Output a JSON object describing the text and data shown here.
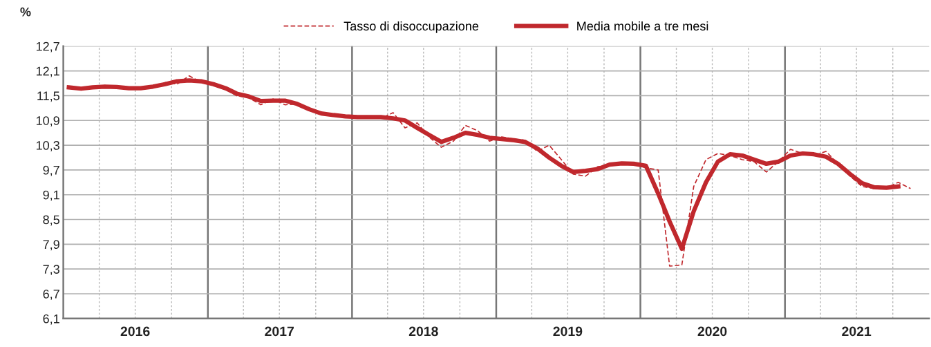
{
  "chart_data": {
    "type": "line",
    "ylabel": "%",
    "x": [
      "2016-01-15",
      "2016-02-15",
      "2016-03-15",
      "2016-04-15",
      "2016-05-15",
      "2016-06-15",
      "2016-07-15",
      "2016-08-15",
      "2016-09-15",
      "2016-10-15",
      "2016-11-15",
      "2016-12-15",
      "2017-01-15",
      "2017-02-15",
      "2017-03-15",
      "2017-04-15",
      "2017-05-15",
      "2017-06-15",
      "2017-07-15",
      "2017-08-15",
      "2017-09-15",
      "2017-10-15",
      "2017-11-15",
      "2017-12-15",
      "2018-01-15",
      "2018-02-15",
      "2018-03-15",
      "2018-04-15",
      "2018-05-15",
      "2018-06-15",
      "2018-07-15",
      "2018-08-15",
      "2018-09-15",
      "2018-10-15",
      "2018-11-15",
      "2018-12-15",
      "2019-01-15",
      "2019-02-15",
      "2019-03-15",
      "2019-04-15",
      "2019-05-15",
      "2019-06-15",
      "2019-07-15",
      "2019-08-15",
      "2019-09-15",
      "2019-10-15",
      "2019-11-15",
      "2019-12-15",
      "2020-01-15",
      "2020-02-15",
      "2020-03-15",
      "2020-04-15",
      "2020-05-15",
      "2020-06-15",
      "2020-07-15",
      "2020-08-15",
      "2020-09-15",
      "2020-10-15",
      "2020-11-15",
      "2020-12-15",
      "2021-01-15",
      "2021-02-15",
      "2021-03-15",
      "2021-04-15",
      "2021-05-15",
      "2021-06-15",
      "2021-07-15",
      "2021-08-15",
      "2021-09-15",
      "2021-10-15",
      "2021-11-15"
    ],
    "series": [
      {
        "name": "Tasso di disoccupazione",
        "color": "#c0282d",
        "line_style": "dashed",
        "values": [
          11.72,
          11.65,
          11.68,
          11.75,
          11.7,
          11.66,
          11.7,
          11.7,
          11.82,
          11.78,
          11.98,
          11.82,
          11.75,
          11.65,
          11.5,
          11.45,
          11.28,
          11.42,
          11.28,
          11.3,
          11.15,
          11.05,
          11.02,
          10.98,
          10.97,
          11.0,
          10.95,
          11.09,
          10.72,
          10.84,
          10.5,
          10.25,
          10.4,
          10.78,
          10.65,
          10.4,
          10.5,
          10.45,
          10.42,
          10.15,
          10.3,
          9.95,
          9.6,
          9.55,
          9.78,
          9.8,
          9.88,
          9.85,
          9.75,
          9.7,
          7.37,
          7.4,
          9.3,
          9.95,
          10.1,
          10.05,
          9.95,
          9.9,
          9.65,
          9.9,
          10.2,
          10.1,
          10.05,
          10.15,
          9.85,
          9.55,
          9.3,
          9.25,
          9.27,
          9.4,
          9.25
        ]
      },
      {
        "name": "Media mobile a tre mesi",
        "color": "#c0282d",
        "line_style": "solid",
        "values": [
          11.7,
          11.67,
          11.7,
          11.72,
          11.71,
          11.68,
          11.68,
          11.72,
          11.78,
          11.85,
          11.87,
          11.85,
          11.78,
          11.68,
          11.55,
          11.48,
          11.37,
          11.38,
          11.38,
          11.3,
          11.17,
          11.07,
          11.03,
          11.0,
          10.98,
          10.98,
          10.98,
          10.95,
          10.9,
          10.72,
          10.55,
          10.38,
          10.48,
          10.6,
          10.55,
          10.48,
          10.45,
          10.42,
          10.38,
          10.22,
          10.0,
          9.8,
          9.65,
          9.68,
          9.72,
          9.83,
          9.86,
          9.85,
          9.8,
          9.13,
          8.45,
          7.79,
          8.7,
          9.4,
          9.9,
          10.08,
          10.05,
          9.95,
          9.85,
          9.9,
          10.05,
          10.1,
          10.08,
          10.02,
          9.85,
          9.6,
          9.38,
          9.28,
          9.27,
          9.3,
          null
        ]
      }
    ],
    "xlim": [
      "2016-01-01",
      "2022-01-01"
    ],
    "xticks": [
      {
        "value": "2016-04-01",
        "label": null
      },
      {
        "value": "2016-07-01",
        "label": "2016"
      },
      {
        "value": "2016-10-01",
        "label": null
      },
      {
        "value": "2017-01-01",
        "label": null
      },
      {
        "value": "2017-04-01",
        "label": null
      },
      {
        "value": "2017-07-01",
        "label": "2017"
      },
      {
        "value": "2017-10-01",
        "label": null
      },
      {
        "value": "2018-01-01",
        "label": null
      },
      {
        "value": "2018-04-01",
        "label": null
      },
      {
        "value": "2018-07-01",
        "label": "2018"
      },
      {
        "value": "2018-10-01",
        "label": null
      },
      {
        "value": "2019-01-01",
        "label": null
      },
      {
        "value": "2019-04-01",
        "label": null
      },
      {
        "value": "2019-07-01",
        "label": "2019"
      },
      {
        "value": "2019-10-01",
        "label": null
      },
      {
        "value": "2020-01-01",
        "label": null
      },
      {
        "value": "2020-04-01",
        "label": null
      },
      {
        "value": "2020-07-01",
        "label": "2020"
      },
      {
        "value": "2020-10-01",
        "label": null
      },
      {
        "value": "2021-01-01",
        "label": null
      },
      {
        "value": "2021-04-01",
        "label": null
      },
      {
        "value": "2021-07-01",
        "label": "2021"
      },
      {
        "value": "2021-10-01",
        "label": null
      }
    ],
    "ylim": [
      6.1,
      12.7
    ],
    "yticks": [
      {
        "value": 6.1,
        "label": "6,1"
      },
      {
        "value": 6.7,
        "label": "6,7"
      },
      {
        "value": 7.3,
        "label": "7,3"
      },
      {
        "value": 7.9,
        "label": "7,9"
      },
      {
        "value": 8.5,
        "label": "8,5"
      },
      {
        "value": 9.1,
        "label": "9,1"
      },
      {
        "value": 9.7,
        "label": "9,7"
      },
      {
        "value": 10.3,
        "label": "10,3"
      },
      {
        "value": 10.9,
        "label": "10,9"
      },
      {
        "value": 11.5,
        "label": "11,5"
      },
      {
        "value": 12.1,
        "label": "12,1"
      },
      {
        "value": 12.7,
        "label": "12,7"
      }
    ],
    "grid": true,
    "legend": "top",
    "marker": "none"
  }
}
